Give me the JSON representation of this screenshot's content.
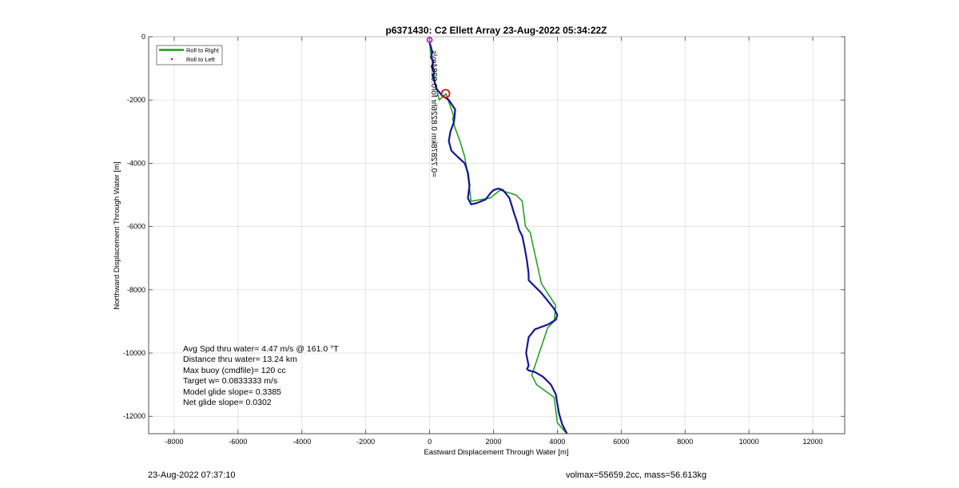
{
  "chart_data": {
    "type": "line",
    "title": "p6371430: C2 Ellett Array 23-Aug-2022 05:34:22Z",
    "xlabel": "Eastward Displacement Through Water [m]",
    "ylabel": "Northward Displacement Through Water [m]",
    "xlim": [
      -8800,
      13000
    ],
    "ylim": [
      -12550,
      0
    ],
    "xticks": [
      -8000,
      -6000,
      -4000,
      -2000,
      0,
      2000,
      4000,
      6000,
      8000,
      10000,
      12000
    ],
    "xtick_labels": [
      "-8000",
      "-6000",
      "-4000",
      "-2000",
      "0",
      "2000",
      "4000",
      "6000",
      "8000",
      "10000",
      "12000"
    ],
    "yticks": [
      0,
      -2000,
      -4000,
      -6000,
      -8000,
      -10000,
      -12000
    ],
    "ytick_labels": [
      "0",
      "-2000",
      "-4000",
      "-6000",
      "-8000",
      "-10000",
      "-12000"
    ],
    "grid": true,
    "legend": {
      "position": "top-left",
      "entries": [
        {
          "label": "Roll to Right",
          "color": "#1a9e1a",
          "style": "line"
        },
        {
          "label": "Roll to Left",
          "color": "#e01010",
          "style": "marker"
        }
      ]
    },
    "series": [
      {
        "name": "Roll to Right",
        "color": "#1a9e1a",
        "x": [
          0,
          30,
          90,
          120,
          150,
          180,
          300,
          510,
          750,
          720,
          800,
          950,
          1100,
          1170,
          1250,
          1300,
          1900,
          2200,
          2700,
          2900,
          3000,
          3150,
          3500,
          3950,
          3900,
          3700,
          3200,
          3350,
          3900,
          4000,
          4250
        ],
        "y": [
          -100,
          -500,
          -800,
          -1000,
          -1200,
          -1500,
          -2000,
          -1800,
          -2500,
          -2600,
          -2900,
          -3300,
          -3800,
          -4200,
          -4800,
          -5200,
          -5100,
          -4850,
          -5000,
          -5200,
          -6000,
          -6200,
          -7800,
          -8500,
          -9000,
          -9200,
          -10700,
          -11000,
          -11400,
          -12200,
          -12500
        ]
      },
      {
        "name": "Blue trajectory",
        "color": "#1414a0",
        "x": [
          0,
          50,
          80,
          40,
          120,
          60,
          140,
          100,
          160,
          220,
          380,
          600,
          800,
          760,
          650,
          600,
          680,
          880,
          1100,
          1200,
          1250,
          1200,
          1300,
          1500,
          1750,
          1900,
          2000,
          2150,
          2300,
          2500,
          2650,
          2750,
          2800,
          2900,
          2980,
          3050,
          3100,
          3100,
          3200,
          3350,
          3500,
          3700,
          3900,
          4000,
          3950,
          3700,
          3300,
          3100,
          3020,
          3100,
          3050,
          3100,
          3300,
          3550,
          3800,
          3950,
          4000,
          4050,
          4150,
          4300
        ],
        "y": [
          -200,
          -350,
          -500,
          -650,
          -800,
          -950,
          -1100,
          -1250,
          -1450,
          -1650,
          -1850,
          -2000,
          -2300,
          -2700,
          -3000,
          -3300,
          -3600,
          -3800,
          -4000,
          -4300,
          -4700,
          -5100,
          -5300,
          -5250,
          -5150,
          -4950,
          -4850,
          -4800,
          -4850,
          -5100,
          -5600,
          -5900,
          -6100,
          -6300,
          -6700,
          -7100,
          -7500,
          -7700,
          -7800,
          -7950,
          -8100,
          -8350,
          -8600,
          -8800,
          -8950,
          -9100,
          -9250,
          -9500,
          -10000,
          -10400,
          -10500,
          -10550,
          -10600,
          -10750,
          -11000,
          -11300,
          -11600,
          -11900,
          -12250,
          -12550
        ]
      }
    ],
    "markers": [
      {
        "name": "start-marker",
        "x": 0,
        "y": -100,
        "color": "#c020c0",
        "shape": "circle"
      },
      {
        "name": "current-marker",
        "x": 500,
        "y": -1800,
        "color": "#e01010",
        "shape": "circle"
      }
    ],
    "rotated_annotation": "Depth data: 0.82226 km =0.72878km",
    "rotated_annotation_display": "=0.72878km  0.8226hr  for0.0284m/s",
    "stats": [
      "Avg Spd thru water=  4.47 m/s @ 161.0 °T",
      "Distance thru water= 13.24 km",
      "Max buoy (cmdfile)= 120 cc",
      "Target w= 0.0833333 m/s",
      "Model glide slope= 0.3385",
      "Net glide slope= 0.0302"
    ]
  },
  "footer": {
    "timestamp": "23-Aug-2022 07:37:10",
    "vol_mass": "volmax=55659.2cc, mass=56.613kg"
  }
}
